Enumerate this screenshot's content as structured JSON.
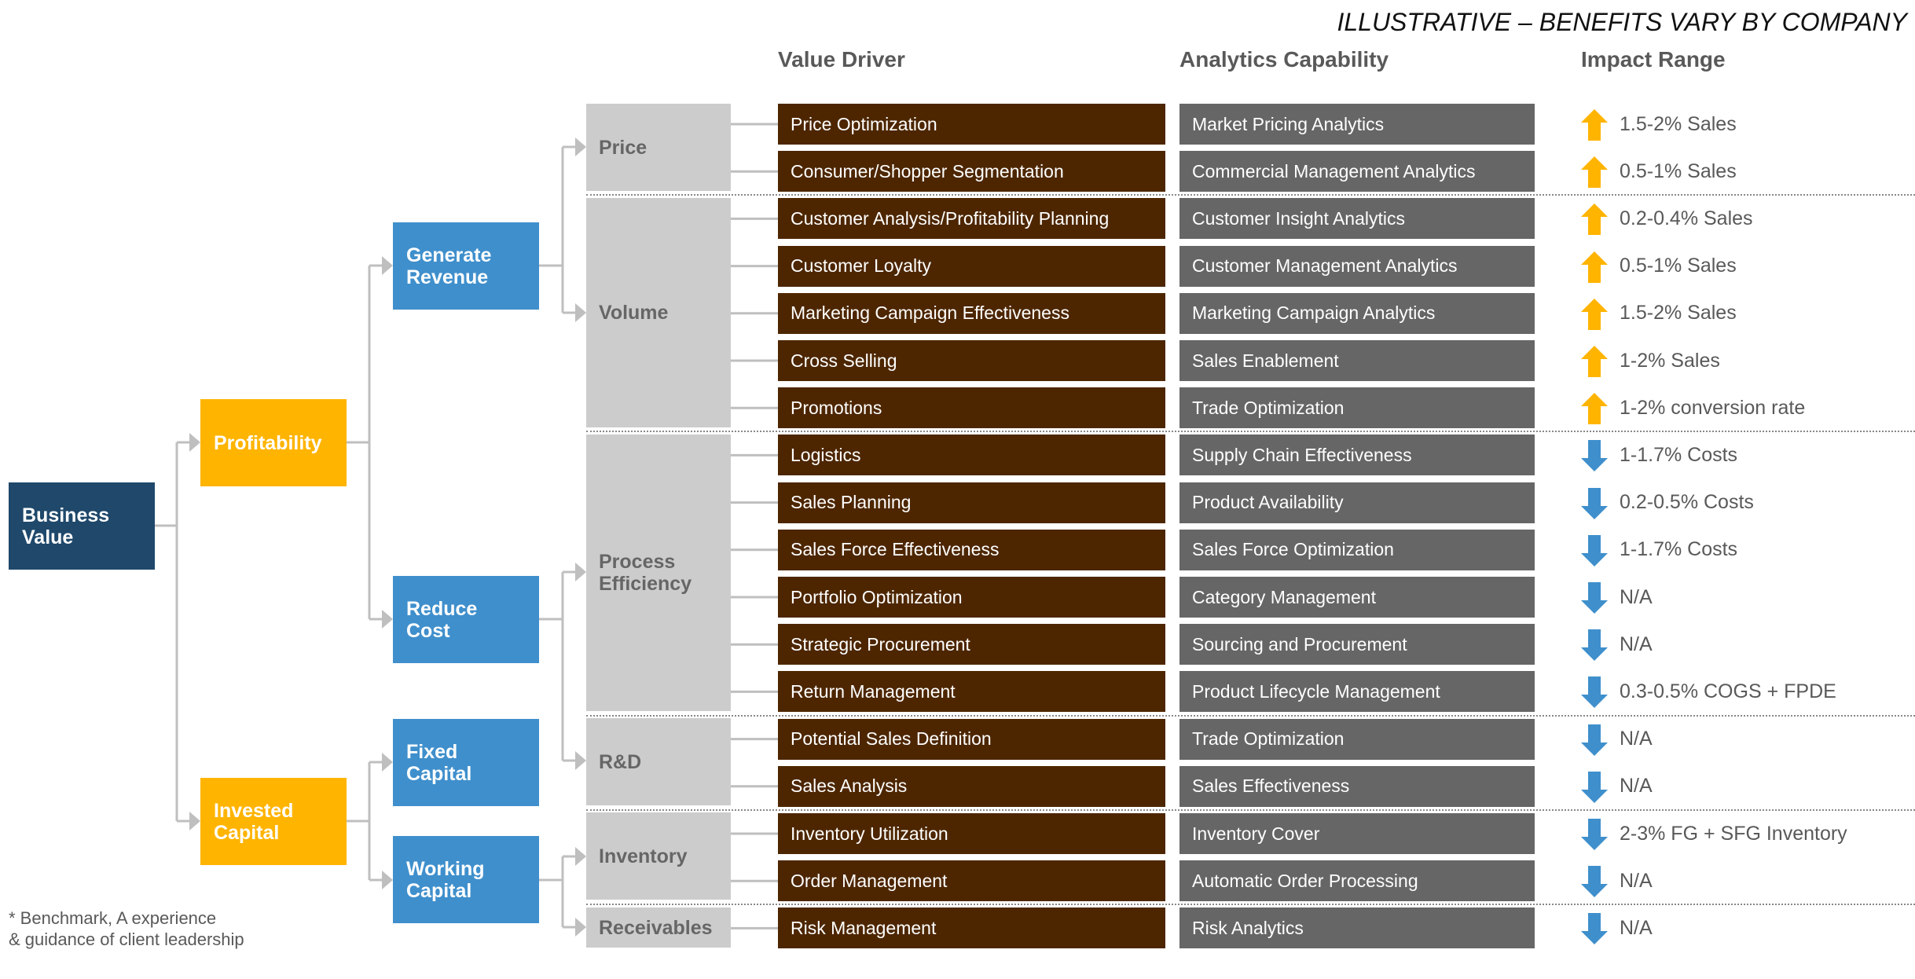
{
  "banner": "ILLUSTRATIVE – BENEFITS VARY BY COMPANY",
  "headers": {
    "value_driver": "Value Driver",
    "analytics_capability": "Analytics Capability",
    "impact_range": "Impact Range"
  },
  "colors": {
    "navy": "#1f486b",
    "yellow": "#ffb400",
    "blue": "#3f8fcc",
    "light_grey": "#cbcccb",
    "brown": "#4d2600",
    "dark_grey": "#666666",
    "connector": "#bfbfbf"
  },
  "level0": {
    "label": "Business Value"
  },
  "level1": [
    {
      "label": "Profitability"
    },
    {
      "label": "Invested Capital"
    }
  ],
  "level2": [
    {
      "label": "Generate Revenue"
    },
    {
      "label": "Reduce Cost"
    },
    {
      "label": "Fixed Capital"
    },
    {
      "label": "Working Capital"
    }
  ],
  "level3": [
    {
      "label": "Price"
    },
    {
      "label": "Volume"
    },
    {
      "label": "Process Efficiency"
    },
    {
      "label": "R&D"
    },
    {
      "label": "Inventory"
    },
    {
      "label": "Receivables"
    }
  ],
  "rows": [
    {
      "driver": "Price Optimization",
      "capability": "Market Pricing Analytics",
      "impact": "1.5-2% Sales",
      "direction": "up"
    },
    {
      "driver": "Consumer/Shopper Segmentation",
      "capability": "Commercial Management Analytics",
      "impact": "0.5-1% Sales",
      "direction": "up"
    },
    {
      "driver": "Customer Analysis/Profitability Planning",
      "capability": "Customer Insight Analytics",
      "impact": "0.2-0.4% Sales",
      "direction": "up"
    },
    {
      "driver": "Customer Loyalty",
      "capability": "Customer Management Analytics",
      "impact": "0.5-1% Sales",
      "direction": "up"
    },
    {
      "driver": "Marketing Campaign Effectiveness",
      "capability": "Marketing Campaign Analytics",
      "impact": "1.5-2% Sales",
      "direction": "up"
    },
    {
      "driver": "Cross Selling",
      "capability": "Sales Enablement",
      "impact": "1-2%  Sales",
      "direction": "up"
    },
    {
      "driver": "Promotions",
      "capability": "Trade Optimization",
      "impact": "1-2% conversion rate",
      "direction": "up"
    },
    {
      "driver": "Logistics",
      "capability": "Supply Chain Effectiveness",
      "impact": "1-1.7% Costs",
      "direction": "down"
    },
    {
      "driver": "Sales Planning",
      "capability": "Product Availability",
      "impact": "0.2-0.5% Costs",
      "direction": "down"
    },
    {
      "driver": "Sales Force Effectiveness",
      "capability": "Sales Force Optimization",
      "impact": "1-1.7% Costs",
      "direction": "down"
    },
    {
      "driver": "Portfolio Optimization",
      "capability": "Category Management",
      "impact": "N/A",
      "direction": "down"
    },
    {
      "driver": "Strategic Procurement",
      "capability": "Sourcing and Procurement",
      "impact": "N/A",
      "direction": "down"
    },
    {
      "driver": "Return Management",
      "capability": "Product Lifecycle Management",
      "impact": "0.3-0.5% COGS + FPDE",
      "direction": "down"
    },
    {
      "driver": "Potential Sales Definition",
      "capability": "Trade Optimization",
      "impact": "N/A",
      "direction": "down"
    },
    {
      "driver": "Sales Analysis",
      "capability": "Sales Effectiveness",
      "impact": "N/A",
      "direction": "down"
    },
    {
      "driver": "Inventory Utilization",
      "capability": "Inventory Cover",
      "impact": "2-3% FG + SFG Inventory",
      "direction": "down"
    },
    {
      "driver": "Order Management",
      "capability": "Automatic Order Processing",
      "impact": "N/A",
      "direction": "down"
    },
    {
      "driver": "Risk Management",
      "capability": "Risk Analytics",
      "impact": "N/A",
      "direction": "down"
    }
  ],
  "footnote": {
    "line1": "* Benchmark, A experience",
    "line2": "& guidance of client leadership"
  }
}
